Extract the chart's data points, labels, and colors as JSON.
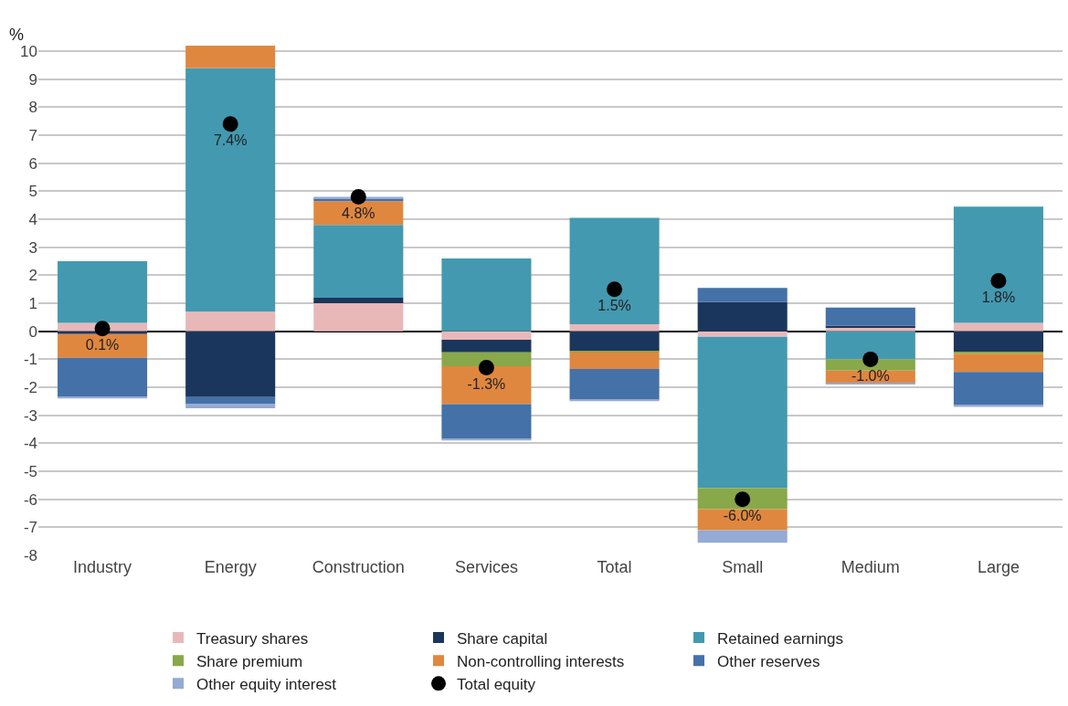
{
  "chart_data": {
    "type": "bar",
    "stacked": true,
    "ylabel": "%",
    "categories": [
      "Industry",
      "Energy",
      "Construction",
      "Services",
      "Total",
      "Small",
      "Medium",
      "Large"
    ],
    "ylim": [
      -8,
      10.2
    ],
    "yticks": [
      -8,
      -7,
      -6,
      -5,
      -4,
      -3,
      -2,
      -1,
      0,
      1,
      2,
      3,
      4,
      5,
      6,
      7,
      8,
      9,
      10
    ],
    "grid": "y",
    "legend": "bottom",
    "series": [
      {
        "name": "Treasury shares",
        "color": "#e8b8b9",
        "values": [
          0.3,
          0.7,
          1.0,
          -0.3,
          0.25,
          -0.2,
          0.12,
          0.3
        ]
      },
      {
        "name": "Share capital",
        "color": "#1b365d",
        "values": [
          -0.1,
          -2.35,
          0.2,
          -0.45,
          -0.7,
          1.05,
          0.08,
          -0.75
        ]
      },
      {
        "name": "Retained earnings",
        "color": "#4399b0",
        "values": [
          2.2,
          8.7,
          2.6,
          2.6,
          3.8,
          -5.4,
          -1.0,
          4.15
        ]
      },
      {
        "name": "Share premium",
        "color": "#88a84a",
        "values": [
          0,
          0,
          0,
          -0.5,
          -0.05,
          -0.75,
          -0.4,
          -0.05
        ]
      },
      {
        "name": "Non-controlling interests",
        "color": "#e0873f",
        "values": [
          -0.85,
          0.8,
          0.85,
          -1.35,
          -0.6,
          -0.75,
          -0.45,
          -0.65
        ]
      },
      {
        "name": "Other reserves",
        "color": "#4471a8",
        "values": [
          -1.4,
          -0.25,
          0.1,
          -1.25,
          -1.1,
          0.5,
          0.65,
          -1.2
        ]
      },
      {
        "name": "Other equity interest",
        "color": "#95aad4",
        "values": [
          -0.05,
          -0.15,
          0.05,
          -0.05,
          -0.05,
          -0.45,
          -0.05,
          -0.05
        ]
      },
      {
        "name": "Total equity",
        "type": "scatter",
        "marker": "circle",
        "color": "#000000",
        "values": [
          0.1,
          7.4,
          4.8,
          -1.3,
          1.5,
          -6.0,
          -1.0,
          1.8
        ],
        "value_labels": [
          "0.1%",
          "7.4%",
          "4.8%",
          "-1.3%",
          "1.5%",
          "-6.0%",
          "-1.0%",
          "1.8%"
        ]
      }
    ]
  }
}
